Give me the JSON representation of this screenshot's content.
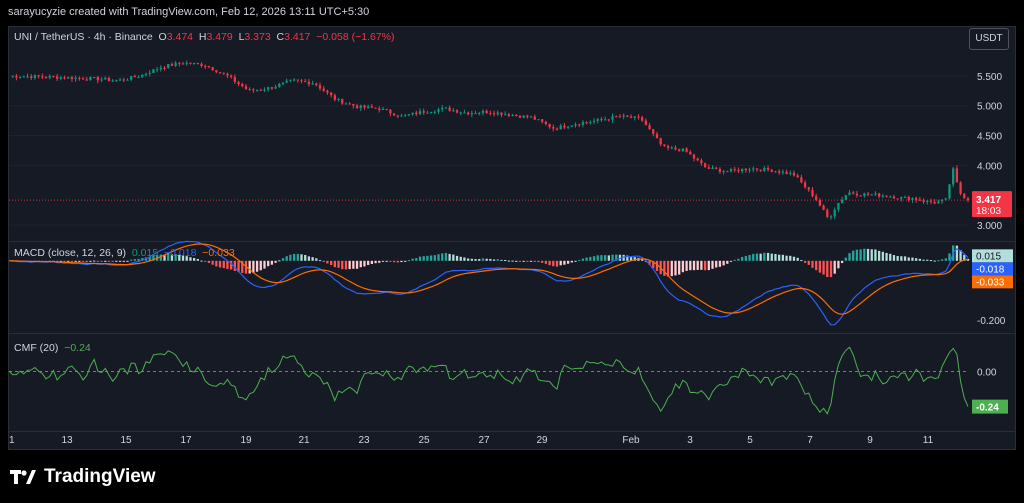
{
  "header": {
    "credit": "sarayucyzie created with TradingView.com, Feb 12, 2026 13:11 UTC+5:30"
  },
  "brand": {
    "name": "TradingView",
    "logo_icon": "tradingview-logo-icon"
  },
  "colors": {
    "up": "#089981",
    "down": "#f23645",
    "macd": "#2962ff",
    "signal": "#ff6d00",
    "cmf": "#4caf50",
    "bg": "#161a25"
  },
  "price_legend": {
    "symbol": "UNI / TetherUS · 4h · Binance",
    "o_label": "O",
    "o": "3.474",
    "h_label": "H",
    "h": "3.479",
    "l_label": "L",
    "l": "3.373",
    "c_label": "C",
    "c": "3.417",
    "change": "−0.058 (−1.67%)"
  },
  "currency_button": "USDT",
  "macd_legend": {
    "label": "MACD (close, 12, 26, 9)",
    "hist": "0.015",
    "macd": "−0.018",
    "signal": "−0.033"
  },
  "cmf_legend": {
    "label": "CMF (20)",
    "value": "−0.24"
  },
  "chart_data": [
    {
      "type": "candlestick",
      "title": "UNI / TetherUS · 4h · Binance",
      "y_ticks": [
        "5.500",
        "5.000",
        "4.500",
        "4.000",
        "3.000"
      ],
      "ylim": [
        2.75,
        6.0
      ],
      "last_price": "3.417",
      "countdown": "18:03",
      "x_ticks": [
        "1",
        "13",
        "15",
        "17",
        "19",
        "21",
        "23",
        "25",
        "27",
        "29",
        "Feb",
        "3",
        "5",
        "7",
        "9",
        "11"
      ],
      "close_path": [
        [
          0,
          5.5
        ],
        [
          2,
          5.48
        ],
        [
          4,
          5.45
        ],
        [
          5,
          5.42
        ],
        [
          6,
          5.5
        ],
        [
          7,
          5.65
        ],
        [
          8,
          5.72
        ],
        [
          9,
          5.68
        ],
        [
          10,
          5.5
        ],
        [
          11,
          5.25
        ],
        [
          12,
          5.3
        ],
        [
          13,
          5.42
        ],
        [
          14,
          5.38
        ],
        [
          15,
          5.1
        ],
        [
          16,
          4.98
        ],
        [
          17,
          4.95
        ],
        [
          18,
          4.82
        ],
        [
          19,
          4.9
        ],
        [
          20,
          4.95
        ],
        [
          21,
          4.88
        ],
        [
          22,
          4.9
        ],
        [
          23,
          4.85
        ],
        [
          24,
          4.8
        ],
        [
          25,
          4.62
        ],
        [
          26,
          4.7
        ],
        [
          27,
          4.75
        ],
        [
          28,
          4.82
        ],
        [
          29,
          4.78
        ],
        [
          30,
          4.3
        ],
        [
          31,
          4.25
        ],
        [
          32,
          3.95
        ],
        [
          33,
          3.9
        ],
        [
          34,
          3.95
        ],
        [
          35,
          3.92
        ],
        [
          36,
          3.85
        ],
        [
          37,
          3.45
        ],
        [
          37.6,
          3.1
        ],
        [
          38,
          3.35
        ],
        [
          38.5,
          3.55
        ],
        [
          39,
          3.52
        ],
        [
          40,
          3.5
        ],
        [
          40.5,
          3.48
        ],
        [
          41,
          3.45
        ],
        [
          41.5,
          3.45
        ],
        [
          42,
          3.4
        ],
        [
          42.5,
          3.38
        ],
        [
          43,
          3.42
        ],
        [
          43.3,
          3.95
        ],
        [
          43.6,
          3.55
        ],
        [
          44,
          3.417
        ]
      ]
    },
    {
      "type": "macd",
      "label": "MACD (close, 12, 26, 9)",
      "y_ticks": [
        "-0.200"
      ],
      "ylim": [
        -0.24,
        0.06
      ],
      "hist_value": "0.015",
      "macd_value": "-0.018",
      "signal_value": "-0.033"
    },
    {
      "type": "line",
      "label": "CMF (20)",
      "y_ticks": [
        "0.00"
      ],
      "ylim": [
        -0.4,
        0.25
      ],
      "last_value": "-0.24"
    }
  ]
}
